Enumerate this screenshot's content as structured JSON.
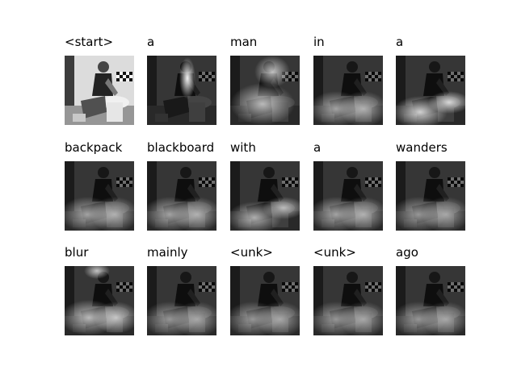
{
  "panels": [
    {
      "word": "<start>",
      "original": true
    },
    {
      "word": "a",
      "attention": "face",
      "heat": 0.95
    },
    {
      "word": "man",
      "attention": "head-shoulder",
      "heat": 0.7
    },
    {
      "word": "in",
      "attention": "lower-spread",
      "heat": 0.6
    },
    {
      "word": "a",
      "attention": "lower-right",
      "heat": 0.8
    },
    {
      "word": "backpack",
      "attention": "lower-spread",
      "heat": 0.6
    },
    {
      "word": "blackboard",
      "attention": "lower-spread",
      "heat": 0.6
    },
    {
      "word": "with",
      "attention": "lower-right",
      "heat": 0.65
    },
    {
      "word": "a",
      "attention": "lower-spread",
      "heat": 0.6
    },
    {
      "word": "wanders",
      "attention": "lower-spread",
      "heat": 0.55
    },
    {
      "word": "blur",
      "attention": "lower-top",
      "heat": 0.7
    },
    {
      "word": "mainly",
      "attention": "lower-spread",
      "heat": 0.55
    },
    {
      "word": "<unk>",
      "attention": "lower-spread",
      "heat": 0.55
    },
    {
      "word": "<unk>",
      "attention": "lower-spread",
      "heat": 0.55
    },
    {
      "word": "ago",
      "attention": "lower-spread",
      "heat": 0.55
    }
  ]
}
